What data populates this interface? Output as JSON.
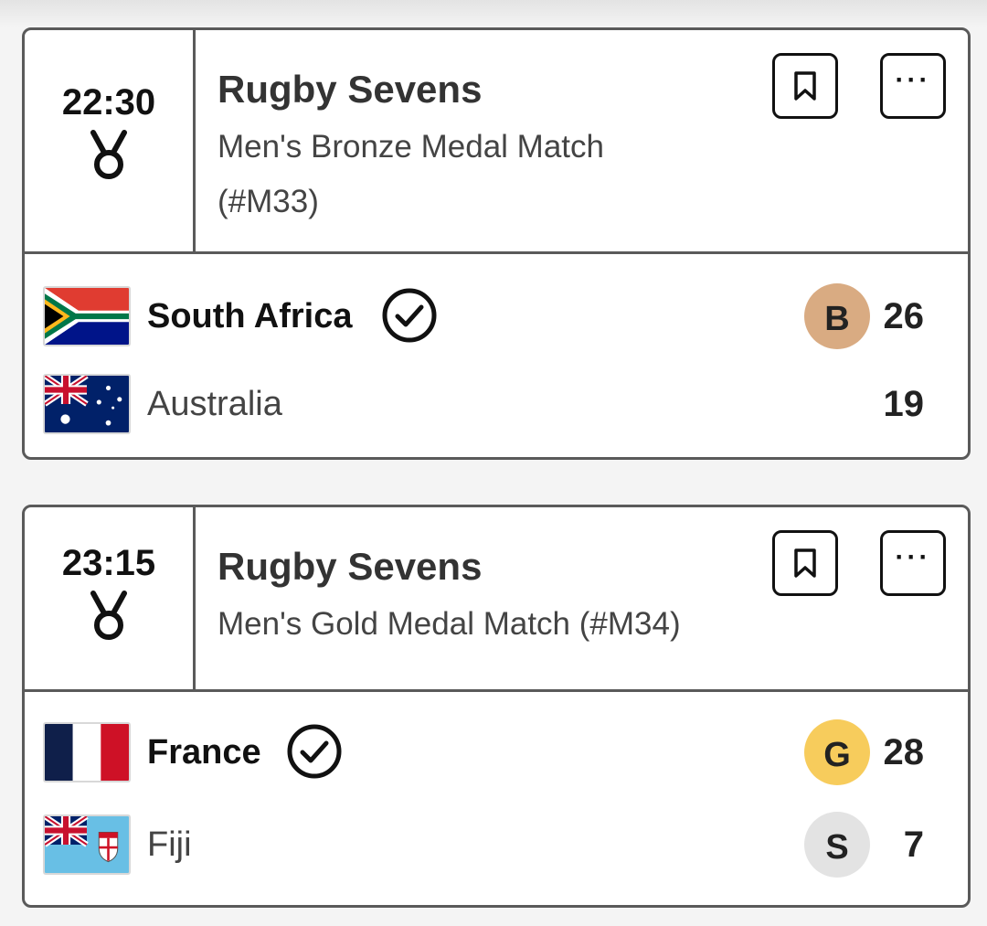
{
  "matches": [
    {
      "time": "22:30",
      "sport": "Rugby Sevens",
      "event": "Men's Bronze Medal Match (#M33)",
      "teams": [
        {
          "name": "South Africa",
          "score": "26",
          "winner": true,
          "medal": "B",
          "medal_color": "#d9ab82",
          "flag": "south-africa-flag"
        },
        {
          "name": "Australia",
          "score": "19",
          "winner": false,
          "medal": "",
          "flag": "australia-flag"
        }
      ]
    },
    {
      "time": "23:15",
      "sport": "Rugby Sevens",
      "event": "Men's Gold Medal Match (#M34)",
      "teams": [
        {
          "name": "France",
          "score": "28",
          "winner": true,
          "medal": "G",
          "medal_color": "#f7cc5c",
          "flag": "france-flag"
        },
        {
          "name": "Fiji",
          "score": "7",
          "winner": false,
          "medal": "S",
          "medal_color": "#e3e3e3",
          "flag": "fiji-flag"
        }
      ]
    }
  ],
  "icons": {
    "medal": "medal-icon",
    "bookmark": "bookmark-icon",
    "more": "more-options-icon",
    "winner": "checkmark-circle-icon"
  }
}
